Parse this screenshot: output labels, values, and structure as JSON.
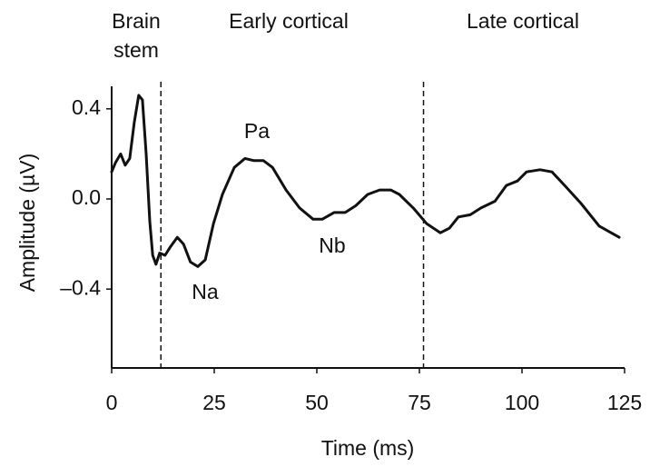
{
  "chart_data": {
    "type": "line",
    "x_label": "Time (ms)",
    "y_label": "Amplitude (µV)",
    "annotations": [
      "Brain",
      "stem",
      "Early cortical",
      "Late cortical",
      "Pa",
      "Na",
      "Nb"
    ],
    "x": [
      0,
      0.9,
      2.2,
      3.3,
      4.4,
      5.5,
      6.6,
      7.5,
      8.4,
      9.3,
      10,
      10.8,
      11.7,
      13,
      14.4,
      16,
      17.5,
      19.2,
      21,
      22.8,
      24.8,
      27,
      29.9,
      32.5,
      34.7,
      37,
      39.2,
      42.5,
      45.8,
      49.1,
      51.3,
      54.2,
      56.9,
      59.5,
      62.4,
      65.3,
      68,
      70.1,
      73.5,
      76.8,
      80.1,
      82.3,
      84.5,
      87.4,
      90,
      93.4,
      96.2,
      98.9,
      101.1,
      104.4,
      107.3,
      110.4,
      114.4,
      118.8,
      123.7
    ],
    "series": [
      {
        "color": "#111111",
        "values": [
          0.12,
          0.16,
          0.2,
          0.15,
          0.18,
          0.34,
          0.46,
          0.44,
          0.2,
          -0.1,
          -0.25,
          -0.29,
          -0.24,
          -0.25,
          -0.21,
          -0.17,
          -0.2,
          -0.28,
          -0.3,
          -0.27,
          -0.11,
          0.02,
          0.14,
          0.18,
          0.17,
          0.17,
          0.14,
          0.04,
          -0.04,
          -0.09,
          -0.09,
          -0.06,
          -0.06,
          -0.03,
          0.02,
          0.04,
          0.04,
          0.02,
          -0.04,
          -0.11,
          -0.15,
          -0.13,
          -0.08,
          -0.07,
          -0.04,
          -0.01,
          0.06,
          0.08,
          0.12,
          0.13,
          0.12,
          0.06,
          -0.02,
          -0.12,
          -0.17
        ]
      }
    ],
    "vlines": [
      12,
      76
    ],
    "xlim": [
      0,
      125
    ],
    "ylim": [
      -0.75,
      0.5
    ],
    "xticks": [
      0,
      25,
      50,
      75,
      100,
      125
    ],
    "yticks": [
      0.4,
      {
        "value": 0,
        "label": "0.0"
      },
      {
        "value": -0.4,
        "label": "–0.4"
      }
    ],
    "grid": false
  }
}
